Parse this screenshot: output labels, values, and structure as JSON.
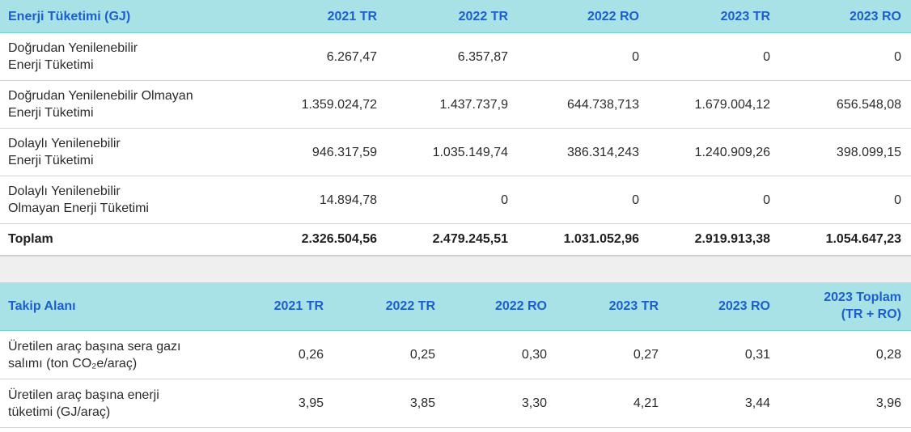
{
  "energy": {
    "headers": [
      "Enerji Tüketimi (GJ)",
      "2021 TR",
      "2022 TR",
      "2022 RO",
      "2023 TR",
      "2023 RO"
    ],
    "rows": [
      {
        "label_line1": "Doğrudan Yenilenebilir",
        "label_line2": "Enerji Tüketimi",
        "values": [
          "6.267,47",
          "6.357,87",
          "0",
          "0",
          "0"
        ]
      },
      {
        "label_line1": "Doğrudan Yenilenebilir Olmayan",
        "label_line2": "Enerji Tüketimi",
        "values": [
          "1.359.024,72",
          "1.437.737,9",
          "644.738,713",
          "1.679.004,12",
          "656.548,08"
        ]
      },
      {
        "label_line1": "Dolaylı Yenilenebilir",
        "label_line2": "Enerji Tüketimi",
        "values": [
          "946.317,59",
          "1.035.149,74",
          "386.314,243",
          "1.240.909,26",
          "398.099,15"
        ]
      },
      {
        "label_line1": "Dolaylı Yenilenebilir",
        "label_line2": "Olmayan Enerji Tüketimi",
        "values": [
          "14.894,78",
          "0",
          "0",
          "0",
          "0"
        ]
      }
    ],
    "total": {
      "label": "Toplam",
      "values": [
        "2.326.504,56",
        "2.479.245,51",
        "1.031.052,96",
        "2.919.913,38",
        "1.054.647,23"
      ]
    }
  },
  "tracking": {
    "headers": [
      "Takip Alanı",
      "2021 TR",
      "2022 TR",
      "2022 RO",
      "2023 TR",
      "2023 RO"
    ],
    "last_header_line1": "2023 Toplam",
    "last_header_line2": "(TR + RO)",
    "rows": [
      {
        "label_line1": "Üretilen araç başına sera gazı",
        "label_line2": "salımı (ton CO₂e/araç)",
        "values": [
          "0,26",
          "0,25",
          "0,30",
          "0,27",
          "0,31",
          "0,28"
        ]
      },
      {
        "label_line1": "Üretilen araç başına enerji",
        "label_line2": "tüketimi (GJ/araç)",
        "values": [
          "3,95",
          "3,85",
          "3,30",
          "4,21",
          "3,44",
          "3,96"
        ]
      }
    ]
  },
  "colors": {
    "header_bg": "#a9e2e6",
    "header_text": "#1b5fcf",
    "gap_bg": "#efefef"
  }
}
